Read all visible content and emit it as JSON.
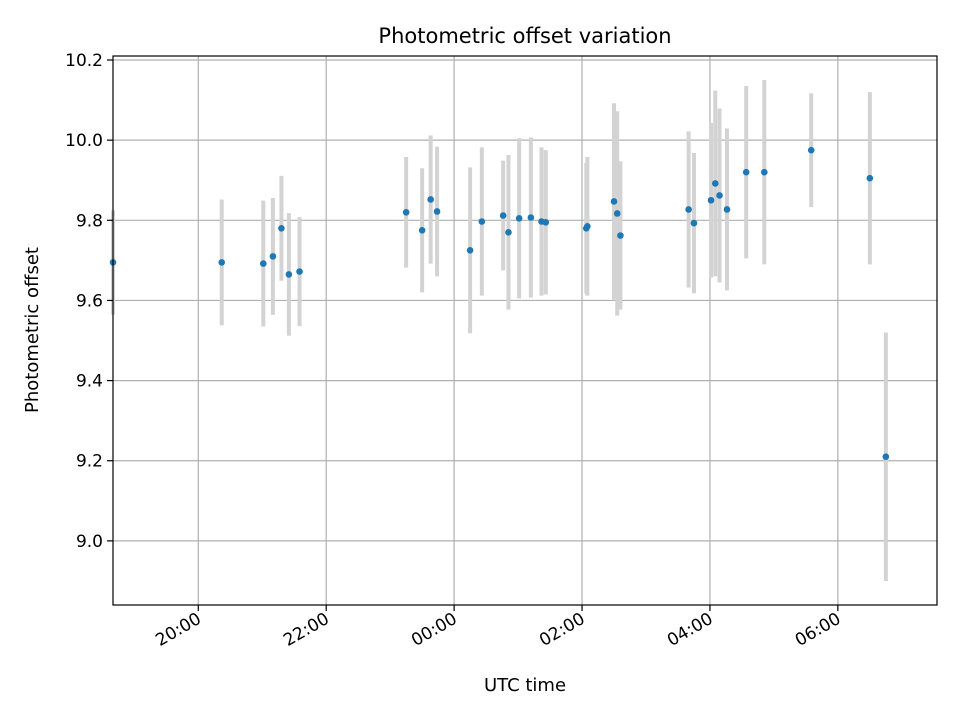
{
  "chart_data": {
    "type": "scatter",
    "title": "Photometric offset variation",
    "xlabel": "UTC time",
    "ylabel": "Photometric offset",
    "x_axis_type": "time",
    "xlim": [
      "18:40",
      "07:33"
    ],
    "ylim": [
      8.84,
      10.21
    ],
    "x_ticks": [
      "20:00",
      "22:00",
      "00:00",
      "02:00",
      "04:00",
      "06:00"
    ],
    "y_ticks": [
      9.0,
      9.2,
      9.4,
      9.6,
      9.8,
      10.0,
      10.2
    ],
    "y_tick_labels": [
      "9.0",
      "9.2",
      "9.4",
      "9.6",
      "9.8",
      "10.0",
      "10.2"
    ],
    "grid": true,
    "point_color": "#1f77b4",
    "errorbar_color": "#d3d3d3",
    "points": [
      {
        "x": "18:40",
        "y": 9.695,
        "err": 0.13
      },
      {
        "x": "20:22",
        "y": 9.695,
        "err": 0.157
      },
      {
        "x": "21:01",
        "y": 9.692,
        "err": 0.157
      },
      {
        "x": "21:10",
        "y": 9.71,
        "err": 0.146
      },
      {
        "x": "21:18",
        "y": 9.78,
        "err": 0.131
      },
      {
        "x": "21:25",
        "y": 9.665,
        "err": 0.153
      },
      {
        "x": "21:35",
        "y": 9.672,
        "err": 0.136
      },
      {
        "x": "23:15",
        "y": 9.82,
        "err": 0.138
      },
      {
        "x": "23:30",
        "y": 9.775,
        "err": 0.155
      },
      {
        "x": "23:38",
        "y": 9.852,
        "err": 0.16
      },
      {
        "x": "23:44",
        "y": 9.822,
        "err": 0.162
      },
      {
        "x": "00:15",
        "y": 9.725,
        "err": 0.207
      },
      {
        "x": "00:26",
        "y": 9.797,
        "err": 0.185
      },
      {
        "x": "00:46",
        "y": 9.812,
        "err": 0.137
      },
      {
        "x": "00:51",
        "y": 9.77,
        "err": 0.193
      },
      {
        "x": "01:01",
        "y": 9.805,
        "err": 0.2
      },
      {
        "x": "01:12",
        "y": 9.807,
        "err": 0.2
      },
      {
        "x": "01:22",
        "y": 9.797,
        "err": 0.185
      },
      {
        "x": "01:26",
        "y": 9.795,
        "err": 0.18
      },
      {
        "x": "02:04",
        "y": 9.78,
        "err": 0.163
      },
      {
        "x": "02:05",
        "y": 9.785,
        "err": 0.173
      },
      {
        "x": "02:30",
        "y": 9.847,
        "err": 0.245
      },
      {
        "x": "02:33",
        "y": 9.817,
        "err": 0.255
      },
      {
        "x": "02:36",
        "y": 9.762,
        "err": 0.185
      },
      {
        "x": "03:40",
        "y": 9.827,
        "err": 0.195
      },
      {
        "x": "03:45",
        "y": 9.793,
        "err": 0.175
      },
      {
        "x": "04:01",
        "y": 9.85,
        "err": 0.193
      },
      {
        "x": "04:05",
        "y": 9.892,
        "err": 0.232
      },
      {
        "x": "04:09",
        "y": 9.862,
        "err": 0.217
      },
      {
        "x": "04:16",
        "y": 9.827,
        "err": 0.202
      },
      {
        "x": "04:34",
        "y": 9.92,
        "err": 0.215
      },
      {
        "x": "04:51",
        "y": 9.92,
        "err": 0.23
      },
      {
        "x": "05:35",
        "y": 9.975,
        "err": 0.142
      },
      {
        "x": "06:30",
        "y": 9.905,
        "err": 0.215
      },
      {
        "x": "06:45",
        "y": 9.21,
        "err": 0.31
      }
    ]
  }
}
